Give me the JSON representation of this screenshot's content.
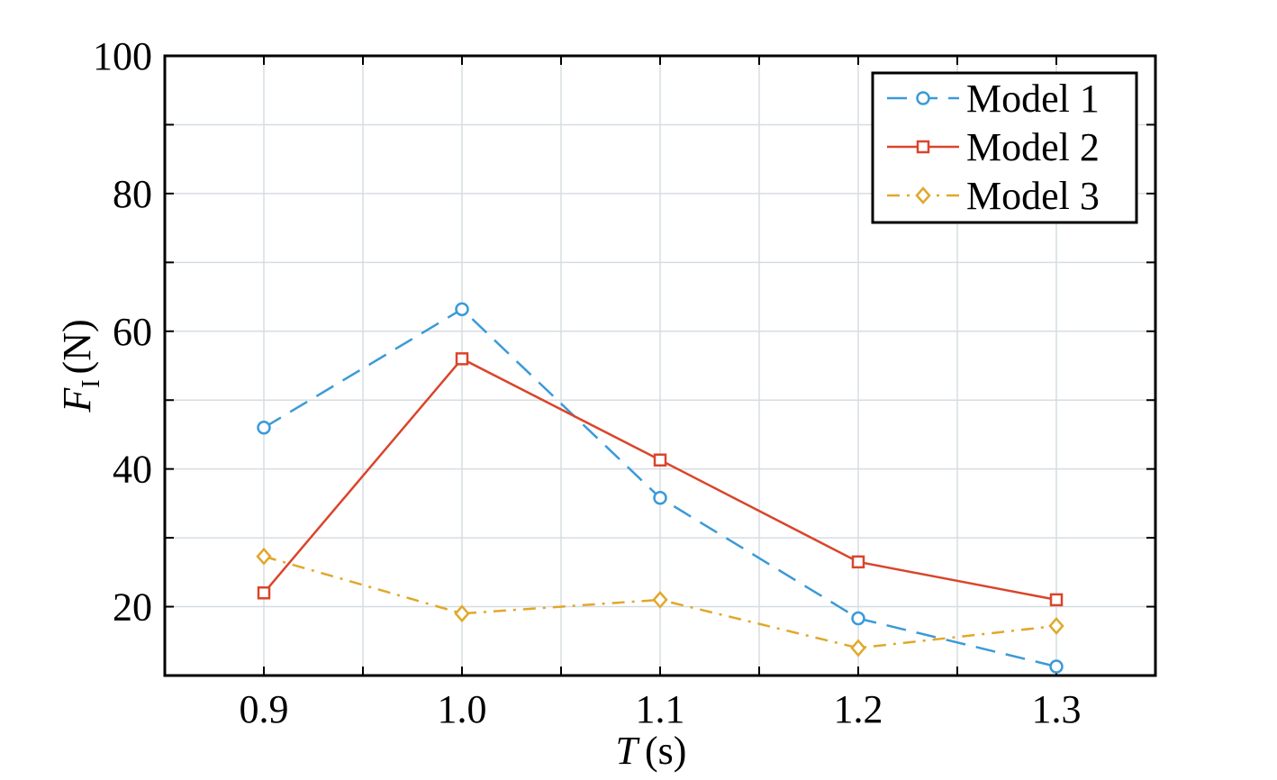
{
  "chart_data": {
    "type": "line",
    "title": "",
    "x": [
      0.9,
      1.0,
      1.1,
      1.2,
      1.3
    ],
    "x_tick_labels": [
      "0.9",
      "1.0",
      "1.1",
      "1.2",
      "1.3"
    ],
    "xlim": [
      0.85,
      1.35
    ],
    "ylim": [
      10,
      100
    ],
    "y_ticks": [
      20,
      40,
      60,
      80,
      100
    ],
    "y_tick_labels": [
      "20",
      "40",
      "60",
      "80",
      "100"
    ],
    "xlabel": {
      "symbol": "T",
      "unit": "(s)"
    },
    "ylabel": {
      "symbol": "F",
      "subscript": "I",
      "unit": "(N)"
    },
    "grid": true,
    "legend_position": "top-right",
    "series": [
      {
        "name": "Model 1",
        "values": [
          46.0,
          63.2,
          35.8,
          18.3,
          11.3
        ],
        "color": "#3a9ad9",
        "marker": "circle",
        "line_style": "dashed"
      },
      {
        "name": "Model 2",
        "values": [
          22.0,
          56.0,
          41.3,
          26.5,
          21.0
        ],
        "color": "#d9452b",
        "marker": "square",
        "line_style": "solid"
      },
      {
        "name": "Model 3",
        "values": [
          27.3,
          19.0,
          21.0,
          14.0,
          17.2
        ],
        "color": "#e0a82a",
        "marker": "diamond",
        "line_style": "dashdot"
      }
    ]
  }
}
